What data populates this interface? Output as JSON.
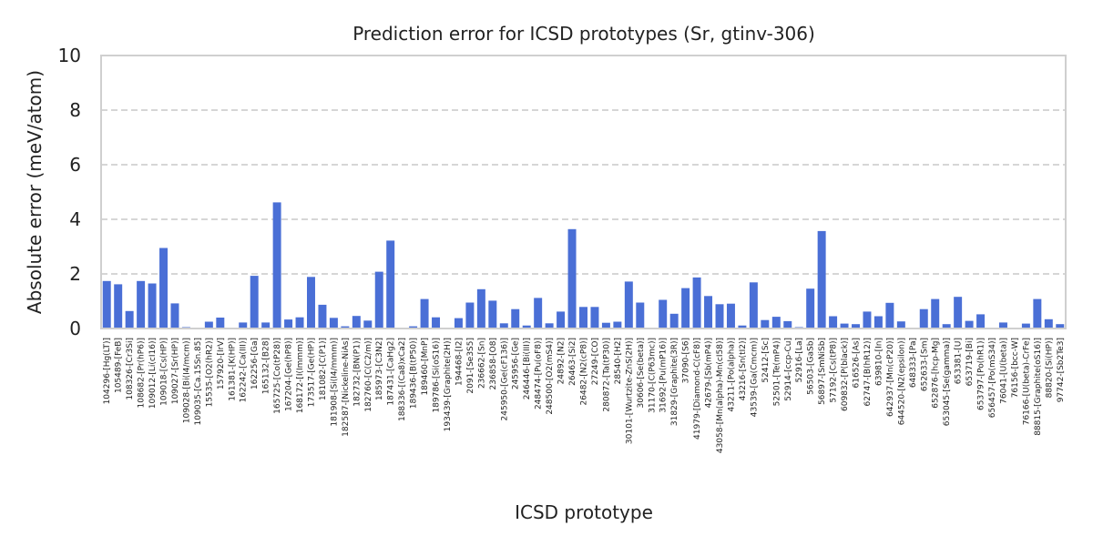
{
  "chart_data": {
    "type": "bar",
    "title": "Prediction error for ICSD prototypes (Sr, gtinv-306)",
    "xlabel": "ICSD prototype",
    "ylabel": "Absolute error (meV/atom)",
    "ylim": [
      0,
      10
    ],
    "yticks": [
      0,
      2,
      4,
      6,
      8,
      10
    ],
    "grid": true,
    "bar_color": "#4a6fd6",
    "categories": [
      "104296-[Hg(LT)]",
      "105489-[FeB]",
      "108326-[Cr3Si]",
      "108682-[Pr(hP6)]",
      "109012-[Li(cI16)]",
      "109018-[Cs(HP)]",
      "109027-[Sr(HP)]",
      "109028-[Bi(I4/mcm)]",
      "109035-[Ca.15Sn.85]",
      "15535-[O2(hR2)]",
      "157920-[IrV]",
      "161381-[K(HP)]",
      "162242-[Ca(III)]",
      "162256-[Ga]",
      "165132-[B28]",
      "165725-[Co(tP28)]",
      "167204-[Ge(hP8)]",
      "168172-[I(Immm)]",
      "173517-[Ge(HP)]",
      "181082-[C(P1)]",
      "181908-[Si(I4/mmm)]",
      "182587-[Nickeline-NiAs]",
      "182732-[BN(P1)]",
      "182760-[C(C2/m)]",
      "185973-[C3N2]",
      "187431-[CaHg2]",
      "188336-[(Ca8)xCa2]",
      "189436-[B(tP50)]",
      "189460-[MnP]",
      "189786-[Si(oS16)]",
      "193439-[Graphite(2H)]",
      "194468-[I2]",
      "2091-[Se3S5]",
      "236662-[Sn]",
      "236858-[O8]",
      "245950-[Ge(cF136)]",
      "245956-[Ge]",
      "246446-[Bi(III)]",
      "248474-[Pu(oF8)]",
      "248500-[O2(mS4)]",
      "24892-[N2]",
      "26463-[Si2]",
      "26482-[N2(cP8)]",
      "27249-[CO]",
      "280872-[Ta(tP30)]",
      "28540-[H2]",
      "30101-[Wurtzite-ZnS(2H)]",
      "30606-[Se(beta)]",
      "31170-[C(P63mc)]",
      "31692-[Pu(mP16)]",
      "31829-[Graphite(3R)]",
      "37090-[S6]",
      "41979-[Diamond-C(cF8)]",
      "42679-[Sb(mP4)]",
      "43058-[Mn(alpha)-Mn(cI58)]",
      "43211-[Po(alpha)]",
      "43216-[Sn(tI2)]",
      "43539-[Ga(Cmcm)]",
      "52412-[Sc]",
      "52501-[Te(mP4)]",
      "52914-[ccp-Cu]",
      "52916-[La]",
      "56503-[GaSb]",
      "56897-[SmNiSb]",
      "57192-[Cs(tP8)]",
      "609832-[P(black)]",
      "616526-[As]",
      "62747-[B(hR12)]",
      "639810-[In]",
      "642937-[Mn(cP20)]",
      "644520-[N2(epsilon)]",
      "648333-[Pa]",
      "652633-[Sm]",
      "652876-[hcp-Mg]",
      "653045-[Se(gamma)]",
      "653381-[U]",
      "653719-[Bi]",
      "653797-[Po(hR1)]",
      "656457-[Po(mS34)]",
      "76041-[U(beta)]",
      "76156-[bcc-W]",
      "76166-[U(beta)-CrFe]",
      "88815-[Graphite(oS16)]",
      "88820-[Si(HP)]",
      "97742-[Sb2Te3]"
    ],
    "values": [
      1.74,
      1.62,
      0.64,
      1.74,
      1.65,
      2.95,
      0.92,
      0.05,
      0.0,
      0.25,
      0.4,
      0.0,
      0.22,
      1.93,
      0.22,
      4.62,
      0.33,
      0.41,
      1.89,
      0.87,
      0.39,
      0.08,
      0.46,
      0.29,
      2.08,
      3.22,
      0.0,
      0.08,
      1.08,
      0.41,
      0.0,
      0.38,
      0.95,
      1.44,
      1.02,
      0.19,
      0.71,
      0.11,
      1.12,
      0.19,
      0.62,
      3.64,
      0.79,
      0.79,
      0.21,
      0.25,
      1.72,
      0.95,
      0.0,
      1.05,
      0.54,
      1.48,
      1.87,
      1.19,
      0.89,
      0.91,
      0.11,
      1.69,
      0.31,
      0.43,
      0.27,
      0.05,
      1.46,
      3.57,
      0.45,
      0.18,
      0.16,
      0.62,
      0.45,
      0.94,
      0.26,
      0.0,
      0.71,
      1.08,
      0.16,
      1.16,
      0.28,
      0.52,
      0.0,
      0.22,
      0.0,
      0.18,
      1.08,
      0.34,
      0.16
    ]
  }
}
